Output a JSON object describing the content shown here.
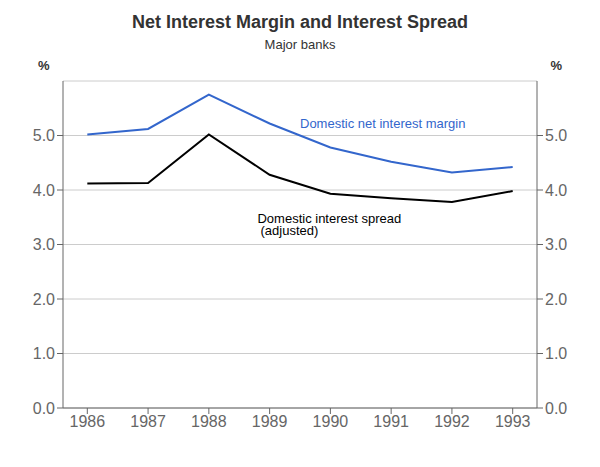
{
  "chart_data": {
    "type": "line",
    "title": "Net Interest Margin and Interest Spread",
    "subtitle": "Major banks",
    "ylabel": "%",
    "y2label": "%",
    "x": [
      1986,
      1987,
      1988,
      1989,
      1990,
      1991,
      1992,
      1993
    ],
    "series": [
      {
        "name": "Domestic net interest margin",
        "color": "#3366cc",
        "values": [
          5.02,
          5.12,
          5.75,
          5.22,
          4.78,
          4.52,
          4.32,
          4.42
        ]
      },
      {
        "name": "Domestic interest spread",
        "color": "#000000",
        "values": [
          4.12,
          4.13,
          5.02,
          4.28,
          3.93,
          3.85,
          3.78,
          3.98
        ]
      }
    ],
    "xlim": [
      1985.6,
      1993.4
    ],
    "xticks": [
      1986,
      1987,
      1988,
      1989,
      1990,
      1991,
      1992,
      1993
    ],
    "ylim": [
      0.0,
      6.0
    ],
    "yticks": [
      {
        "value": 0.0,
        "label": "0.0"
      },
      {
        "value": 1.0,
        "label": "1.0"
      },
      {
        "value": 2.0,
        "label": "2.0"
      },
      {
        "value": 3.0,
        "label": "3.0"
      },
      {
        "value": 4.0,
        "label": "4.0"
      },
      {
        "value": 5.0,
        "label": "5.0"
      }
    ],
    "y2lim": [
      0.0,
      6.0
    ],
    "y2ticks": [
      {
        "value": 0.0,
        "label": "0.0"
      },
      {
        "value": 1.0,
        "label": "1.0"
      },
      {
        "value": 2.0,
        "label": "2.0"
      },
      {
        "value": 3.0,
        "label": "3.0"
      },
      {
        "value": 4.0,
        "label": "4.0"
      },
      {
        "value": 5.0,
        "label": "5.0"
      }
    ],
    "grid": true,
    "annotations": [
      {
        "text": "Domestic net interest margin",
        "x": 1989.5,
        "y": 5.22,
        "color": "#3366cc"
      },
      {
        "text": "Domestic interest spread",
        "x": 1988.8,
        "y": 3.48,
        "color": "#000000"
      },
      {
        "text": "(adjusted)",
        "x": 1988.85,
        "y": 3.26,
        "color": "#000000"
      }
    ]
  }
}
